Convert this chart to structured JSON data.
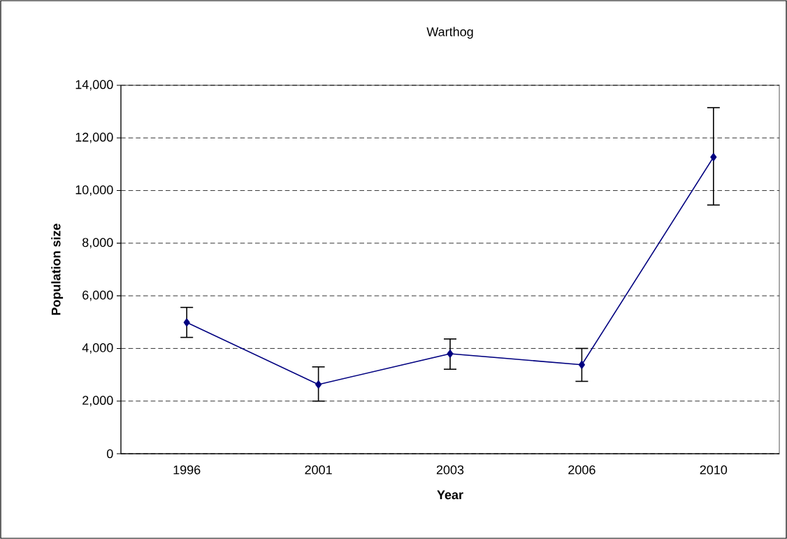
{
  "chart_data": {
    "type": "line",
    "title": "Warthog",
    "xlabel": "Year",
    "ylabel": "Population size",
    "categories": [
      "1996",
      "2001",
      "2003",
      "2006",
      "2010"
    ],
    "series": [
      {
        "color": "#000080",
        "values": [
          4990,
          2630,
          3800,
          3380,
          11270
        ],
        "errors": [
          [
            4420,
            5560
          ],
          [
            2000,
            3300
          ],
          [
            3210,
            4360
          ],
          [
            2750,
            4000
          ],
          [
            9450,
            13150
          ]
        ]
      }
    ],
    "ylim": [
      0,
      14000
    ],
    "yticks": [
      0,
      {
        "value": 2000,
        "label": "2,000"
      },
      {
        "value": 4000,
        "label": "4,000"
      },
      {
        "value": 6000,
        "label": "6,000"
      },
      {
        "value": 8000,
        "label": "8,000"
      },
      {
        "value": 10000,
        "label": "10,000"
      },
      {
        "value": 12000,
        "label": "12,000"
      },
      {
        "value": 14000,
        "label": "14,000"
      }
    ],
    "grid": "y",
    "marker": "diamond",
    "line_style": "solid"
  }
}
